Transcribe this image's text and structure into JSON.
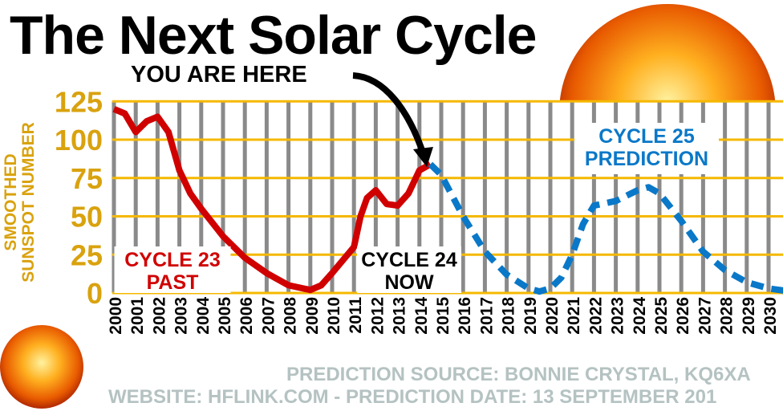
{
  "title": "The Next Solar Cycle",
  "annotation": "YOU ARE HERE",
  "footer": {
    "source": "PREDICTION SOURCE: BONNIE CRYSTAL, KQ6XA",
    "website": "WEBSITE: HFLINK.COM  -  PREDICTION DATE: 13 SEPTEMBER 201"
  },
  "chart_data": {
    "type": "line",
    "ylabel": "SMOOTHED SUNSPOT NUMBER",
    "ylabel_lines": [
      "SMOOTHED",
      "SUNSPOT NUMBER"
    ],
    "ylim": [
      0,
      125
    ],
    "yticks": [
      0,
      25,
      50,
      75,
      100,
      125
    ],
    "xlim": [
      2000,
      2031
    ],
    "xticks": [
      "2000",
      "2001",
      "2002",
      "2003",
      "2004",
      "2005",
      "2006",
      "2007",
      "2008",
      "2009",
      "2010",
      "2011",
      "2012",
      "2013",
      "2014",
      "2015",
      "2016",
      "2017",
      "2018",
      "2019",
      "2020",
      "2021",
      "2022",
      "2023",
      "2024",
      "2025",
      "2026",
      "2027",
      "2028",
      "2029",
      "2030",
      "2031"
    ],
    "grid": true,
    "colors": {
      "past": "#d00000",
      "prediction": "#0a78c8",
      "grid_h": "#f5b800",
      "grid_v": "#8a8a8a",
      "axis_text": "#d9a20e"
    },
    "series": [
      {
        "name": "CYCLE 23 / CYCLE 24",
        "style": "solid",
        "x": [
          2000,
          2000.5,
          2001,
          2001.5,
          2002,
          2002.5,
          2003,
          2003.5,
          2004,
          2005,
          2006,
          2007,
          2008,
          2009,
          2009.5,
          2010,
          2011,
          2011.3,
          2011.6,
          2012,
          2012.5,
          2013,
          2013.5,
          2014,
          2014.5
        ],
        "y": [
          120,
          117,
          105,
          112,
          115,
          105,
          80,
          65,
          55,
          37,
          23,
          13,
          5,
          2,
          5,
          13,
          30,
          50,
          62,
          67,
          58,
          57,
          65,
          80,
          84
        ]
      },
      {
        "name": "CYCLE 25 PREDICTION",
        "style": "dashed",
        "x": [
          2014.5,
          2015,
          2016,
          2017,
          2018,
          2019,
          2019.5,
          2020,
          2020.5,
          2021,
          2021.5,
          2022,
          2023,
          2024,
          2024.5,
          2025,
          2026,
          2027,
          2028,
          2029,
          2030,
          2031
        ],
        "y": [
          84,
          77,
          50,
          27,
          12,
          3,
          1,
          3,
          10,
          25,
          45,
          57,
          60,
          67,
          69,
          65,
          47,
          27,
          15,
          7,
          3,
          1
        ]
      }
    ],
    "labels": [
      {
        "lines": [
          "CYCLE 23",
          "PAST"
        ],
        "color": "#d00000"
      },
      {
        "lines": [
          "CYCLE 24",
          "NOW"
        ],
        "color": "#000000"
      },
      {
        "lines": [
          "CYCLE 25",
          "PREDICTION"
        ],
        "color": "#0a78c8"
      }
    ]
  }
}
